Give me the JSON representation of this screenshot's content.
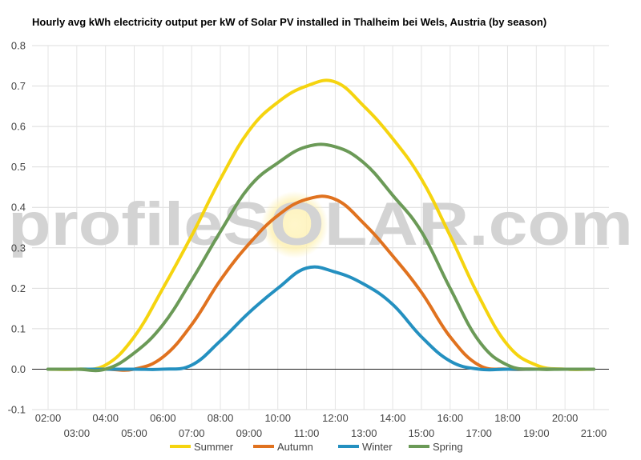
{
  "chart_data": {
    "type": "line",
    "title": "Hourly avg kWh electricity output per kW of Solar PV installed in Thalheim bei Wels, Austria (by season)",
    "xlabel": "",
    "ylabel": "",
    "ylim": [
      -0.1,
      0.8
    ],
    "yticks": [
      "0.8",
      "0.7",
      "0.6",
      "0.5",
      "0.4",
      "0.3",
      "0.2",
      "0.1",
      "0.0",
      "-0.1"
    ],
    "x": [
      "02:00",
      "03:00",
      "04:00",
      "05:00",
      "06:00",
      "07:00",
      "08:00",
      "09:00",
      "10:00",
      "11:00",
      "12:00",
      "13:00",
      "14:00",
      "15:00",
      "16:00",
      "17:00",
      "18:00",
      "19:00",
      "20:00",
      "21:00"
    ],
    "grid": true,
    "legend_position": "bottom",
    "series": [
      {
        "name": "Summer",
        "color": "#f5d40f",
        "values": [
          0,
          0,
          0.01,
          0.08,
          0.2,
          0.33,
          0.47,
          0.59,
          0.66,
          0.7,
          0.71,
          0.65,
          0.57,
          0.47,
          0.33,
          0.18,
          0.06,
          0.01,
          0,
          0
        ]
      },
      {
        "name": "Autumn",
        "color": "#e0721f",
        "values": [
          0,
          0,
          0,
          0,
          0.03,
          0.11,
          0.22,
          0.31,
          0.38,
          0.42,
          0.42,
          0.36,
          0.28,
          0.19,
          0.08,
          0.01,
          0,
          0,
          0,
          0
        ]
      },
      {
        "name": "Winter",
        "color": "#2490c0",
        "values": [
          0,
          0,
          0,
          0,
          0,
          0.01,
          0.07,
          0.14,
          0.2,
          0.25,
          0.24,
          0.21,
          0.16,
          0.08,
          0.02,
          0,
          0,
          0,
          0,
          0
        ]
      },
      {
        "name": "Spring",
        "color": "#6b9a57",
        "values": [
          0,
          0,
          0,
          0.04,
          0.11,
          0.22,
          0.34,
          0.45,
          0.51,
          0.55,
          0.55,
          0.51,
          0.43,
          0.34,
          0.2,
          0.07,
          0.01,
          0,
          0,
          0
        ]
      }
    ]
  },
  "watermark": {
    "text": "profileSOLAR.com"
  }
}
